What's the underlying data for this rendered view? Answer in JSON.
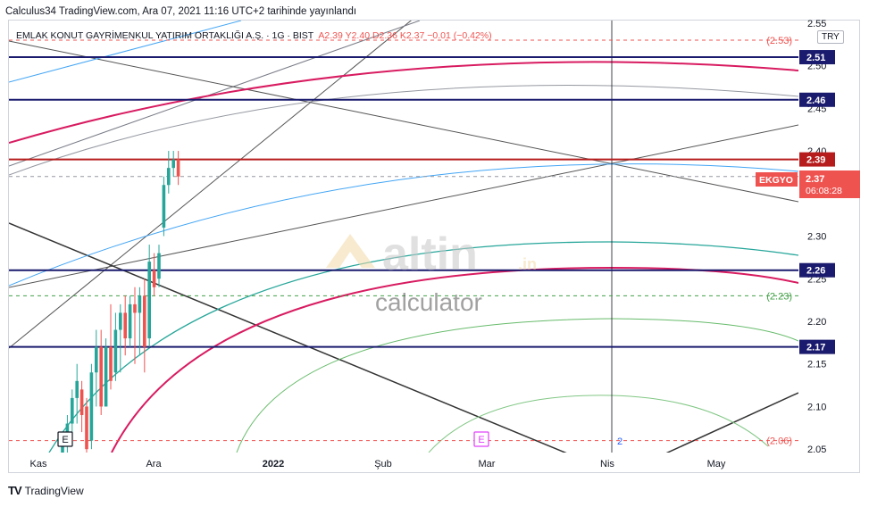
{
  "header": {
    "publish_line": "Calculus34 TradingView.com, Ara 07, 2021 11:16 UTC+2 tarihinde yayınlandı"
  },
  "symbol": {
    "name": "EMLAK KONUT GAYRİMENKUL YATIRIM ORTAKLIĞI A.Ş. · 1G · BIST",
    "ohlc": "A2.39  Y2.40  D2.36  K2.37  −0.01 (−0.42%)",
    "currency": "TRY",
    "ticker": "EKGYO",
    "last_price": "2.37",
    "countdown": "06:08:28"
  },
  "watermark": {
    "brand": "altin",
    "brand_suffix": ".in",
    "sub": "calculator"
  },
  "footer": {
    "brand": "TradingView",
    "logo": "TV"
  },
  "chart_data": {
    "type": "candlestick",
    "x_ticks": [
      "Kas",
      "Ara",
      "2022",
      "Şub",
      "Mar",
      "Nis",
      "May"
    ],
    "y_ticks": [
      "2.55",
      "2.50",
      "2.45",
      "2.40",
      "2.30",
      "2.25",
      "2.20",
      "2.15",
      "2.10",
      "2.05"
    ],
    "ylim": [
      2.046,
      2.553
    ],
    "horizontal_levels": [
      {
        "value": 2.51,
        "label": "2.51",
        "color": "#1a1a6e"
      },
      {
        "value": 2.46,
        "label": "2.46",
        "color": "#1a1a6e"
      },
      {
        "value": 2.39,
        "label": "2.39",
        "color": "#b71c1c"
      },
      {
        "value": 2.26,
        "label": "2.26",
        "color": "#1a1a6e"
      },
      {
        "value": 2.17,
        "label": "2.17",
        "color": "#1a1a6e"
      }
    ],
    "dashed_levels": [
      {
        "value": 2.53,
        "label": "(2.53)",
        "color": "#ef5350"
      },
      {
        "value": 2.37,
        "label": "(2.37)",
        "color": "#9598a1"
      },
      {
        "value": 2.23,
        "label": "(2.23)",
        "color": "#43a047"
      },
      {
        "value": 2.06,
        "label": "(2.06)",
        "color": "#ef5350"
      }
    ],
    "candles": [
      {
        "o": 2.04,
        "h": 2.07,
        "l": 2.03,
        "c": 2.06
      },
      {
        "o": 2.06,
        "h": 2.09,
        "l": 2.04,
        "c": 2.08
      },
      {
        "o": 2.08,
        "h": 2.12,
        "l": 2.06,
        "c": 2.11
      },
      {
        "o": 2.11,
        "h": 2.15,
        "l": 2.08,
        "c": 2.13
      },
      {
        "o": 2.12,
        "h": 2.13,
        "l": 2.07,
        "c": 2.09
      },
      {
        "o": 2.1,
        "h": 2.11,
        "l": 2.04,
        "c": 2.05
      },
      {
        "o": 2.06,
        "h": 2.15,
        "l": 2.05,
        "c": 2.14
      },
      {
        "o": 2.14,
        "h": 2.19,
        "l": 2.1,
        "c": 2.17
      },
      {
        "o": 2.17,
        "h": 2.19,
        "l": 2.09,
        "c": 2.1
      },
      {
        "o": 2.1,
        "h": 2.18,
        "l": 2.1,
        "c": 2.17
      },
      {
        "o": 2.17,
        "h": 2.22,
        "l": 2.12,
        "c": 2.13
      },
      {
        "o": 2.14,
        "h": 2.21,
        "l": 2.13,
        "c": 2.19
      },
      {
        "o": 2.19,
        "h": 2.22,
        "l": 2.14,
        "c": 2.21
      },
      {
        "o": 2.21,
        "h": 2.23,
        "l": 2.16,
        "c": 2.18
      },
      {
        "o": 2.18,
        "h": 2.23,
        "l": 2.17,
        "c": 2.22
      },
      {
        "o": 2.22,
        "h": 2.24,
        "l": 2.15,
        "c": 2.21
      },
      {
        "o": 2.21,
        "h": 2.24,
        "l": 2.16,
        "c": 2.23
      },
      {
        "o": 2.23,
        "h": 2.25,
        "l": 2.14,
        "c": 2.17
      },
      {
        "o": 2.18,
        "h": 2.29,
        "l": 2.17,
        "c": 2.27
      },
      {
        "o": 2.26,
        "h": 2.28,
        "l": 2.23,
        "c": 2.24
      },
      {
        "o": 2.25,
        "h": 2.29,
        "l": 2.24,
        "c": 2.28
      },
      {
        "o": 2.31,
        "h": 2.37,
        "l": 2.3,
        "c": 2.36
      },
      {
        "o": 2.36,
        "h": 2.4,
        "l": 2.35,
        "c": 2.38
      },
      {
        "o": 2.38,
        "h": 2.4,
        "l": 2.37,
        "c": 2.39
      },
      {
        "o": 2.39,
        "h": 2.4,
        "l": 2.36,
        "c": 2.37
      }
    ],
    "markers": [
      "E",
      "E",
      "2"
    ]
  }
}
